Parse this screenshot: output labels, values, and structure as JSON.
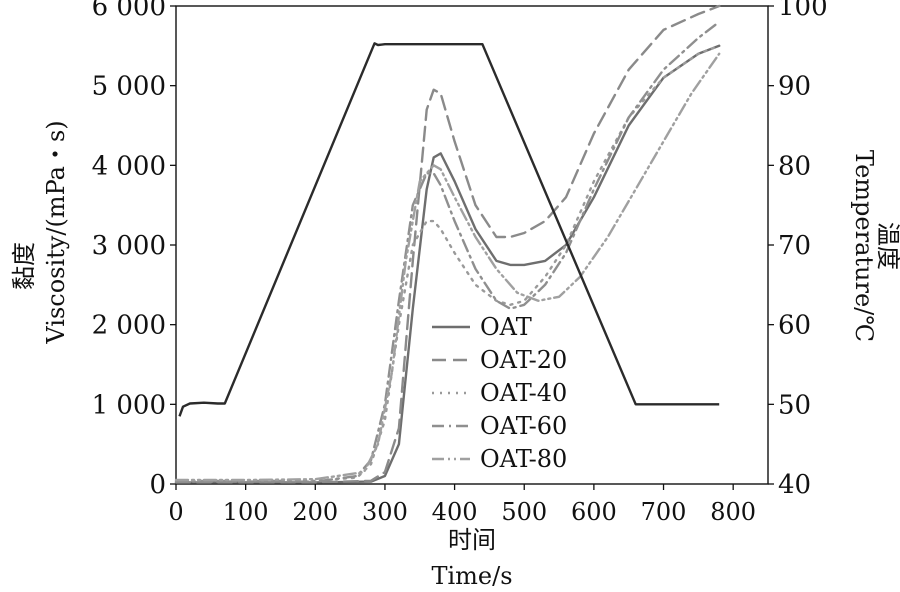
{
  "chart_data": {
    "type": "line",
    "xlabel_zh": "时间",
    "xlabel_en": "Time/s",
    "ylabel_left_zh": "黏度",
    "ylabel_left_en": "Viscosity/(mPa・s)",
    "ylabel_right_en": "Temperature/℃",
    "ylabel_right_zh": "温度",
    "xlim": [
      0,
      850
    ],
    "ylim_left": [
      0,
      6000
    ],
    "ylim_right": [
      40,
      100
    ],
    "x_ticks": [
      0,
      100,
      200,
      300,
      400,
      500,
      600,
      700,
      800
    ],
    "x_tick_labels": [
      "0",
      "100",
      "200",
      "300",
      "400",
      "500",
      "600",
      "700",
      "800"
    ],
    "y_left_ticks": [
      0,
      1000,
      2000,
      3000,
      4000,
      5000,
      6000
    ],
    "y_left_tick_labels": [
      "0",
      "1 000",
      "2 000",
      "3 000",
      "4 000",
      "5 000",
      "6 000"
    ],
    "y_right_ticks": [
      40,
      50,
      60,
      70,
      80,
      90,
      100
    ],
    "y_right_tick_labels": [
      "40",
      "50",
      "60",
      "70",
      "80",
      "90",
      "100"
    ],
    "legend_position": "center-bottom",
    "temperature": {
      "axis": "right",
      "color": "#2b2b2b",
      "x": [
        5,
        10,
        20,
        40,
        60,
        70,
        285,
        290,
        300,
        350,
        440,
        660,
        670,
        780
      ],
      "y": [
        48.5,
        49.7,
        50.1,
        50.2,
        50.1,
        50.1,
        95.3,
        95.1,
        95.2,
        95.2,
        95.2,
        50.0,
        50.0,
        50.0
      ]
    },
    "series": [
      {
        "name": "OAT",
        "dash": "solid",
        "color": "#6e6e6e",
        "x": [
          0,
          100,
          200,
          280,
          300,
          320,
          340,
          360,
          370,
          380,
          400,
          430,
          460,
          480,
          500,
          530,
          560,
          600,
          650,
          700,
          750,
          780
        ],
        "y": [
          20,
          20,
          20,
          30,
          100,
          500,
          2200,
          3700,
          4100,
          4150,
          3800,
          3200,
          2800,
          2750,
          2750,
          2800,
          3000,
          3600,
          4500,
          5100,
          5400,
          5500
        ]
      },
      {
        "name": "OAT-20",
        "dash": "long",
        "color": "#8a8a8a",
        "x": [
          0,
          100,
          200,
          280,
          300,
          320,
          340,
          360,
          370,
          380,
          400,
          430,
          460,
          480,
          500,
          530,
          560,
          600,
          650,
          700,
          750,
          780
        ],
        "y": [
          20,
          20,
          20,
          40,
          150,
          700,
          2800,
          4700,
          4950,
          4900,
          4300,
          3500,
          3100,
          3100,
          3150,
          3300,
          3600,
          4400,
          5200,
          5700,
          5900,
          6000
        ]
      },
      {
        "name": "OAT-40",
        "dash": "dot",
        "color": "#9a9a9a",
        "x": [
          0,
          100,
          200,
          260,
          280,
          300,
          320,
          340,
          360,
          370,
          380,
          400,
          430,
          460,
          480,
          500,
          530,
          560,
          600,
          650,
          700,
          750,
          780
        ],
        "y": [
          40,
          40,
          40,
          80,
          250,
          800,
          2000,
          3000,
          3300,
          3300,
          3200,
          2900,
          2500,
          2300,
          2250,
          2300,
          2600,
          3000,
          3800,
          4600,
          5100,
          5400,
          5500
        ]
      },
      {
        "name": "OAT-60",
        "dash": "dashdot",
        "color": "#8f8f8f",
        "x": [
          0,
          100,
          200,
          260,
          280,
          300,
          320,
          340,
          360,
          370,
          380,
          400,
          430,
          460,
          480,
          500,
          530,
          560,
          600,
          650,
          700,
          750,
          780
        ],
        "y": [
          30,
          30,
          30,
          100,
          300,
          1000,
          2300,
          3500,
          3900,
          3900,
          3750,
          3300,
          2700,
          2300,
          2200,
          2250,
          2500,
          2900,
          3700,
          4600,
          5200,
          5600,
          5800
        ]
      },
      {
        "name": "OAT-80",
        "dash": "dashdotdot",
        "color": "#a0a0a0",
        "x": [
          0,
          100,
          200,
          270,
          290,
          310,
          330,
          350,
          370,
          380,
          400,
          430,
          460,
          490,
          520,
          550,
          580,
          620,
          660,
          700,
          740,
          780
        ],
        "y": [
          50,
          50,
          60,
          150,
          500,
          1400,
          2800,
          3800,
          4000,
          3950,
          3600,
          3100,
          2700,
          2400,
          2300,
          2350,
          2600,
          3100,
          3700,
          4300,
          4900,
          5400
        ]
      }
    ]
  }
}
